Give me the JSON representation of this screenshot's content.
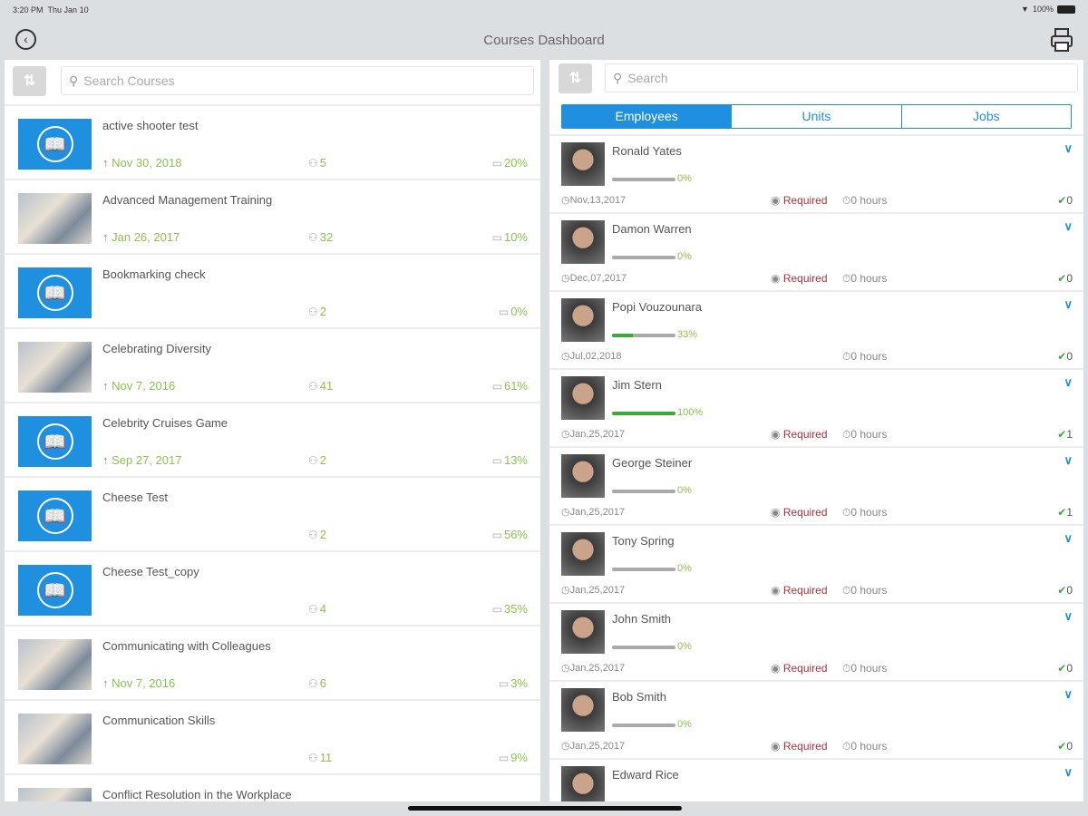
{
  "status": {
    "time": "3:20 PM",
    "date": "Thu Jan 10",
    "battery": "100%"
  },
  "nav": {
    "title": "Courses Dashboard",
    "back_icon": "back-circle-icon",
    "print_icon": "printer-icon"
  },
  "courses": {
    "search_placeholder": "Search Courses",
    "items": [
      {
        "title": "active shooter test",
        "date": "Nov 30, 2018",
        "members": "5",
        "percent": "20%",
        "thumb": "book"
      },
      {
        "title": "Advanced Management Training",
        "date": "Jan 26, 2017",
        "members": "32",
        "percent": "10%",
        "thumb": "photo"
      },
      {
        "title": "Bookmarking check",
        "date": "",
        "members": "2",
        "percent": "0%",
        "thumb": "book"
      },
      {
        "title": "Celebrating Diversity",
        "date": "Nov 7, 2016",
        "members": "41",
        "percent": "61%",
        "thumb": "photo"
      },
      {
        "title": "Celebrity Cruises Game",
        "date": "Sep 27, 2017",
        "members": "2",
        "percent": "13%",
        "thumb": "book"
      },
      {
        "title": "Cheese Test",
        "date": "",
        "members": "2",
        "percent": "56%",
        "thumb": "book"
      },
      {
        "title": "Cheese Test_copy",
        "date": "",
        "members": "4",
        "percent": "35%",
        "thumb": "book"
      },
      {
        "title": "Communicating with Colleagues",
        "date": "Nov 7, 2016",
        "members": "6",
        "percent": "3%",
        "thumb": "photo"
      },
      {
        "title": "Communication Skills",
        "date": "",
        "members": "11",
        "percent": "9%",
        "thumb": "photo"
      },
      {
        "title": "Conflict Resolution in the Workplace",
        "date": "",
        "members": "",
        "percent": "",
        "thumb": "photo"
      }
    ]
  },
  "employees": {
    "search_placeholder": "Search",
    "tabs": [
      {
        "label": "Employees",
        "active": true
      },
      {
        "label": "Units",
        "active": false
      },
      {
        "label": "Jobs",
        "active": false
      }
    ],
    "items": [
      {
        "name": "Ronald Yates",
        "progress": 0,
        "percent": "0%",
        "date": "Nov,13,2017",
        "required": "Required",
        "hours": "0 hours",
        "count": "0"
      },
      {
        "name": "Damon Warren",
        "progress": 0,
        "percent": "0%",
        "date": "Dec,07,2017",
        "required": "Required",
        "hours": "0 hours",
        "count": "0"
      },
      {
        "name": "Popi Vouzounara",
        "progress": 33,
        "percent": "33%",
        "date": "Jul,02,2018",
        "required": "",
        "hours": "0 hours",
        "count": "0"
      },
      {
        "name": "Jim Stern",
        "progress": 100,
        "percent": "100%",
        "date": "Jan,25,2017",
        "required": "Required",
        "hours": "0 hours",
        "count": "1"
      },
      {
        "name": "George Steiner",
        "progress": 0,
        "percent": "0%",
        "date": "Jan,25,2017",
        "required": "Required",
        "hours": "0 hours",
        "count": "1"
      },
      {
        "name": "Tony Spring",
        "progress": 0,
        "percent": "0%",
        "date": "Jan,25,2017",
        "required": "Required",
        "hours": "0 hours",
        "count": "0"
      },
      {
        "name": "John Smith",
        "progress": 0,
        "percent": "0%",
        "date": "Jan,25,2017",
        "required": "Required",
        "hours": "0 hours",
        "count": "0"
      },
      {
        "name": "Bob Smith",
        "progress": 0,
        "percent": "0%",
        "date": "Jan,25,2017",
        "required": "Required",
        "hours": "0 hours",
        "count": "0"
      },
      {
        "name": "Edward Rice",
        "progress": null,
        "percent": "",
        "date": "",
        "required": "",
        "hours": "",
        "count": ""
      }
    ]
  },
  "colors": {
    "accent": "#1f8fe0",
    "green": "#8cc152",
    "required": "#b0303a"
  }
}
